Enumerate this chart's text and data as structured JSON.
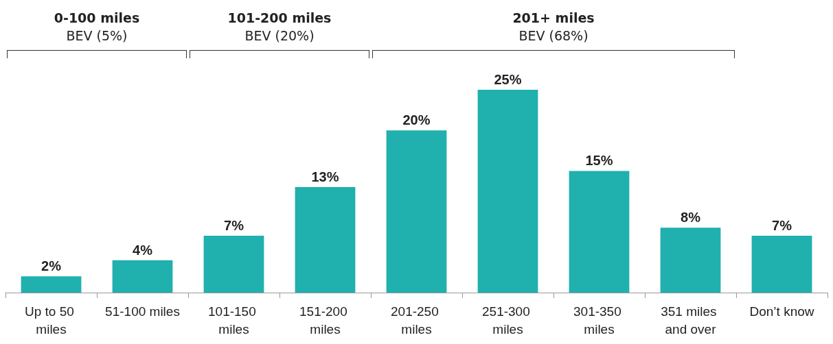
{
  "chart_data": {
    "type": "bar",
    "categories": [
      "Up to 50 miles",
      "51-100 miles",
      "101-150 miles",
      "151-200 miles",
      "201-250 miles",
      "251-300 miles",
      "301-350 miles",
      "351 miles and over",
      "Don’t know"
    ],
    "values": [
      2,
      4,
      7,
      13,
      20,
      25,
      15,
      8,
      7
    ],
    "color": "#20b0ae",
    "value_labels": [
      "2%",
      "4%",
      "7%",
      "13%",
      "20%",
      "25%",
      "15%",
      "8%",
      "7%"
    ],
    "annotations": [
      "0-100 miles",
      "BEV (5%)",
      "101-200 miles",
      "BEV (20%)",
      "201+ miles",
      "BEV (68%)"
    ]
  }
}
